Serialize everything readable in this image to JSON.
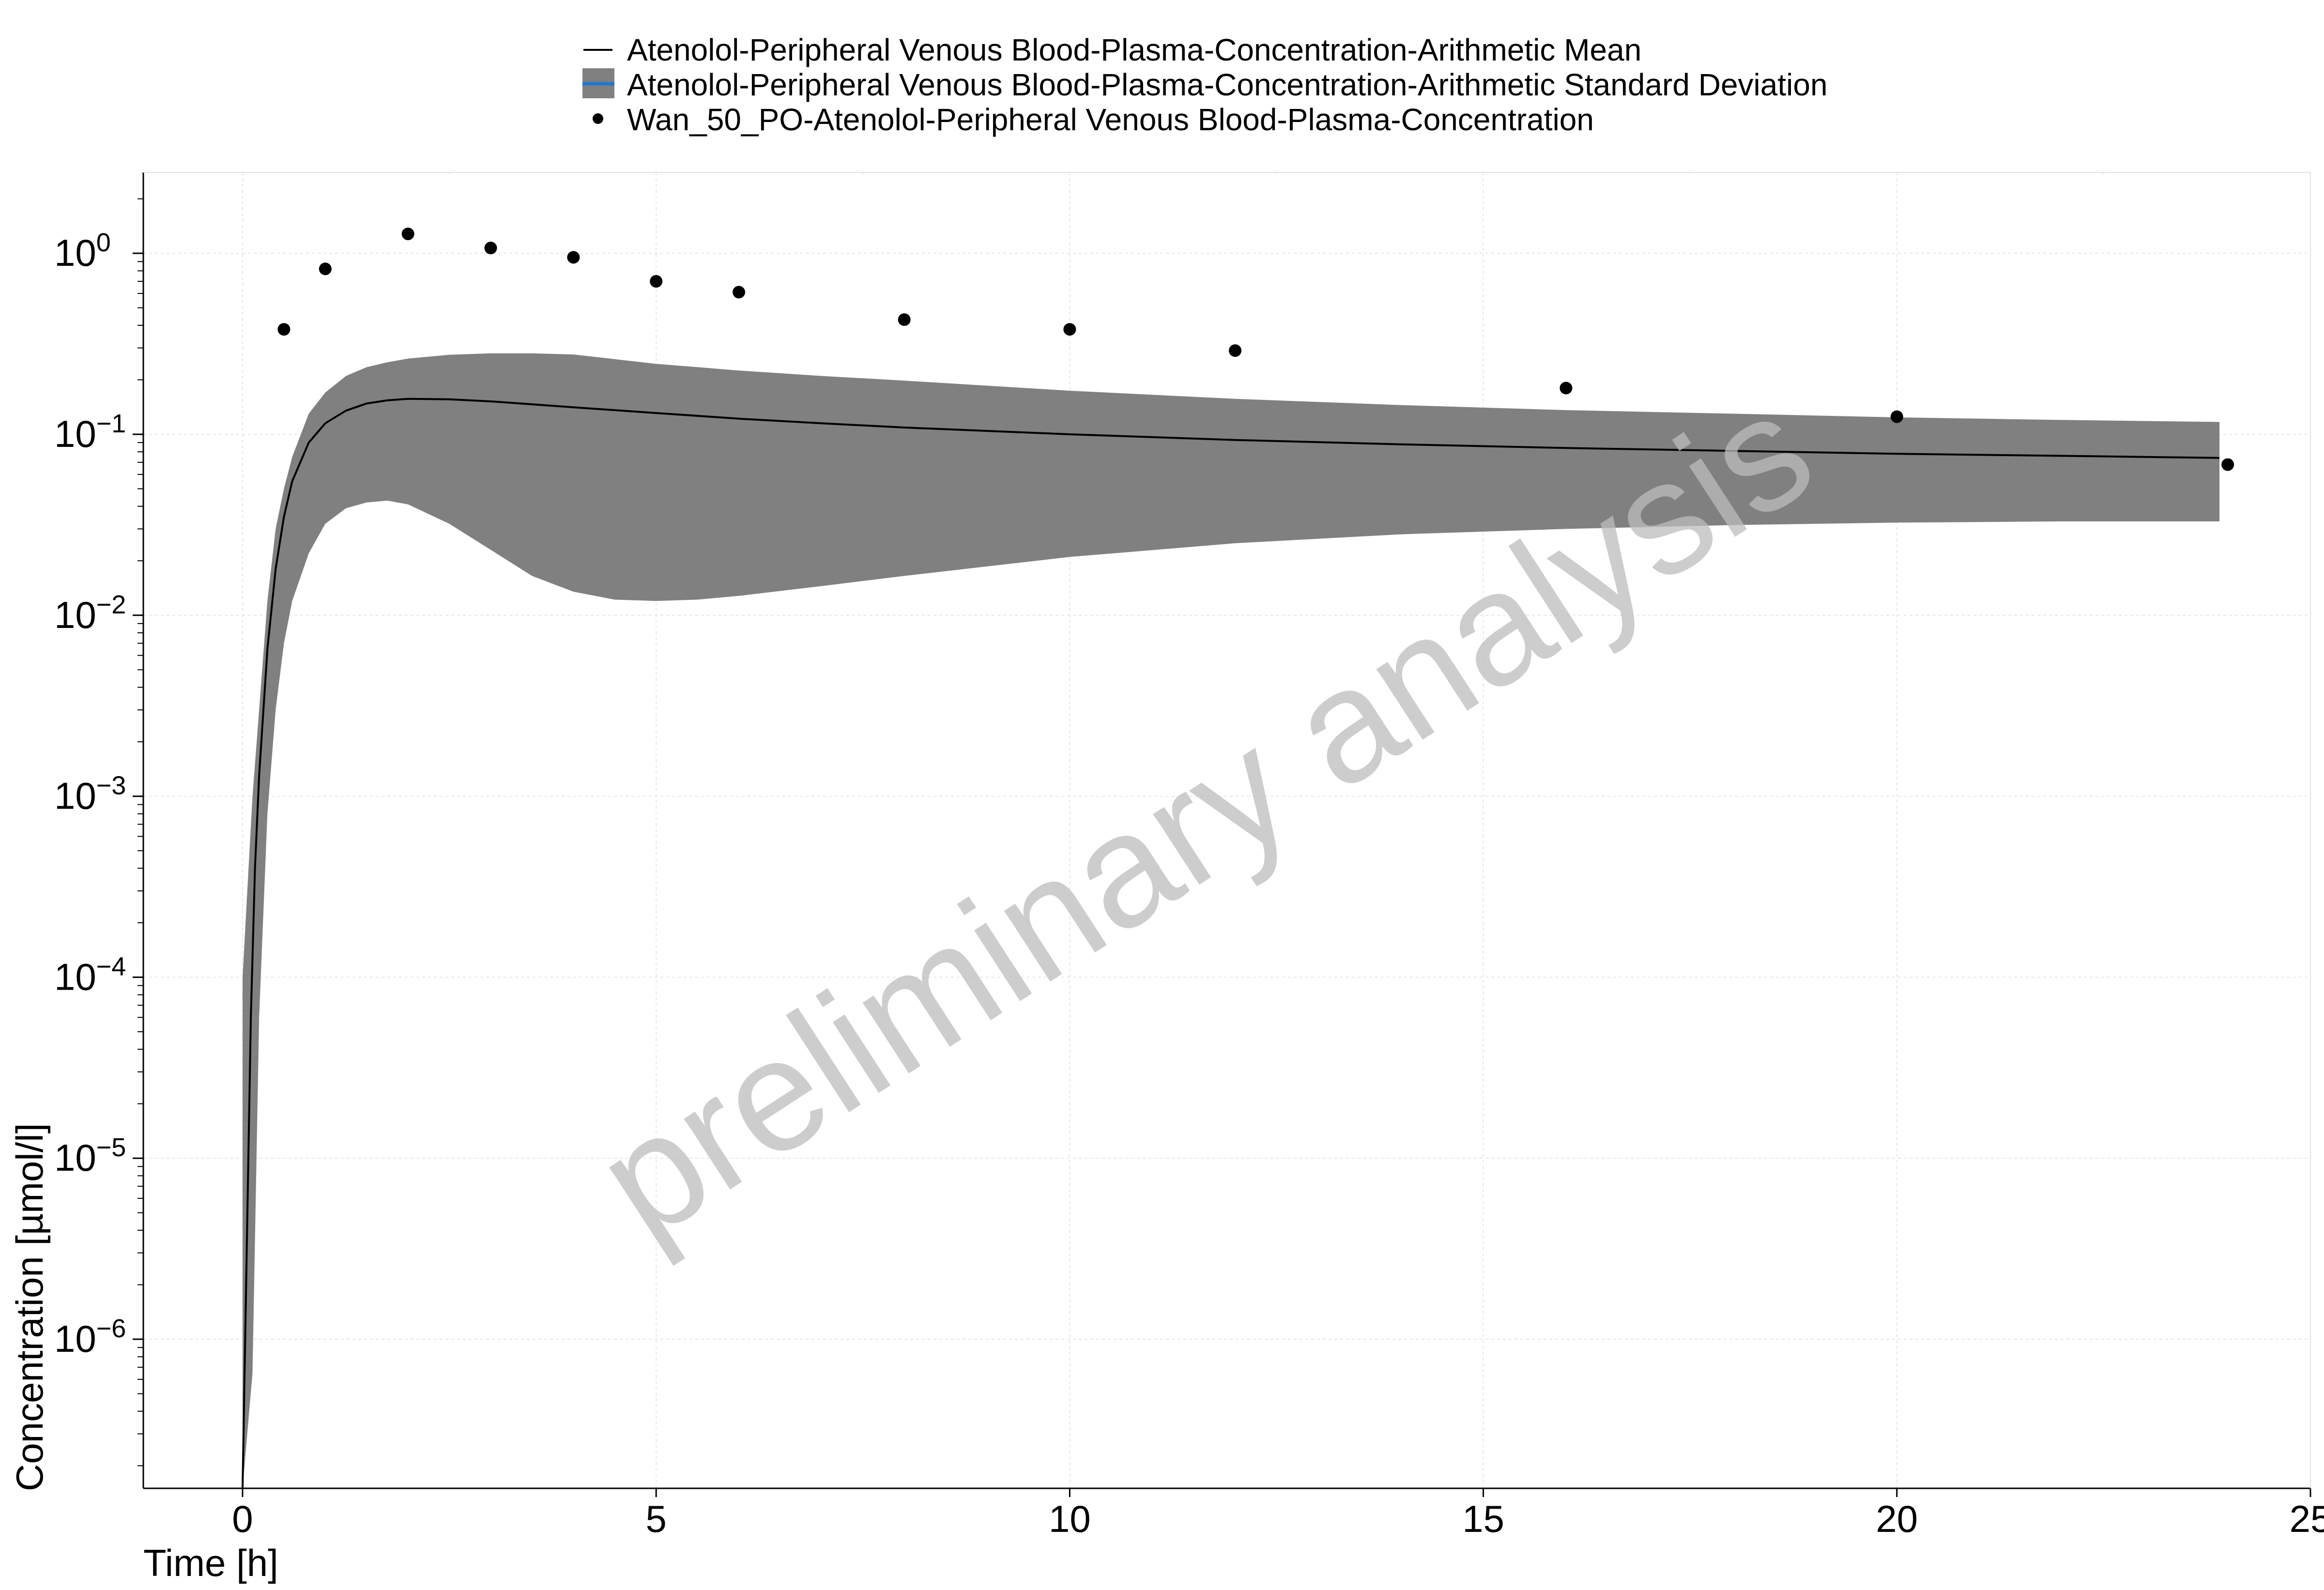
{
  "chart_data": {
    "type": "line",
    "xlabel": "Time [h]",
    "ylabel": "Concentration [µmol/l]",
    "xlim": [
      -1.2,
      25
    ],
    "ylim": [
      1.5e-07,
      2.8
    ],
    "yscale": "log",
    "grid": true,
    "legend_position": "top-center",
    "watermark": "preliminary analysis",
    "x_ticks": [
      {
        "value": 0,
        "label": "0"
      },
      {
        "value": 5,
        "label": "5"
      },
      {
        "value": 10,
        "label": "10"
      },
      {
        "value": 15,
        "label": "15"
      },
      {
        "value": 20,
        "label": "20"
      },
      {
        "value": 25,
        "label": "25"
      }
    ],
    "y_ticks": [
      {
        "value": 1e-06,
        "base": "10",
        "exp": "−6"
      },
      {
        "value": 1e-05,
        "base": "10",
        "exp": "−5"
      },
      {
        "value": 0.0001,
        "base": "10",
        "exp": "−4"
      },
      {
        "value": 0.001,
        "base": "10",
        "exp": "−3"
      },
      {
        "value": 0.01,
        "base": "10",
        "exp": "−2"
      },
      {
        "value": 0.1,
        "base": "10",
        "exp": "−1"
      },
      {
        "value": 1,
        "base": "10",
        "exp": "0"
      }
    ],
    "legend": [
      {
        "label": "Atenolol-Peripheral Venous Blood-Plasma-Concentration-Arithmetic Mean",
        "marker": "line"
      },
      {
        "label": "Atenolol-Peripheral Venous Blood-Plasma-Concentration-Arithmetic Standard Deviation",
        "marker": "band"
      },
      {
        "label": "Wan_50_PO-Atenolol-Peripheral Venous Blood-Plasma-Concentration",
        "marker": "point"
      }
    ],
    "series": [
      {
        "name": "Atenolol-Peripheral Venous Blood-Plasma-Concentration-Arithmetic Mean",
        "kind": "line",
        "color": "#000000",
        "x": [
          0,
          0.05,
          0.1,
          0.15,
          0.2,
          0.3,
          0.4,
          0.5,
          0.6,
          0.8,
          1.0,
          1.25,
          1.5,
          1.75,
          2.0,
          2.5,
          3,
          4,
          5,
          6,
          7,
          8,
          10,
          12,
          14,
          16,
          18,
          20,
          22,
          23.9
        ],
        "y": [
          1.5e-07,
          3e-06,
          6e-05,
          0.0004,
          0.0013,
          0.0065,
          0.018,
          0.035,
          0.055,
          0.09,
          0.115,
          0.135,
          0.148,
          0.154,
          0.157,
          0.156,
          0.152,
          0.141,
          0.131,
          0.122,
          0.115,
          0.109,
          0.1,
          0.093,
          0.088,
          0.084,
          0.081,
          0.078,
          0.076,
          0.074
        ]
      },
      {
        "name": "Atenolol-Peripheral Venous Blood-Plasma-Concentration-Arithmetic Standard Deviation",
        "kind": "band",
        "color": "#808080",
        "x": [
          0.0,
          0.12,
          0.2,
          0.3,
          0.4,
          0.5,
          0.6,
          0.8,
          1.0,
          1.25,
          1.5,
          1.75,
          2.0,
          2.5,
          3,
          3.5,
          4,
          4.5,
          5,
          5.5,
          6,
          7,
          8,
          10,
          12,
          14,
          16,
          18,
          20,
          22,
          23.9
        ],
        "lower": [
          1.5e-07,
          6.5e-07,
          6e-05,
          0.0008,
          0.003,
          0.007,
          0.012,
          0.022,
          0.032,
          0.039,
          0.042,
          0.043,
          0.041,
          0.032,
          0.023,
          0.0165,
          0.0135,
          0.0122,
          0.012,
          0.0122,
          0.0128,
          0.0145,
          0.0165,
          0.021,
          0.025,
          0.028,
          0.03,
          0.0315,
          0.0325,
          0.033,
          0.033
        ],
        "upper": [
          0.0001,
          0.001,
          0.003,
          0.012,
          0.03,
          0.05,
          0.075,
          0.13,
          0.17,
          0.21,
          0.235,
          0.25,
          0.262,
          0.275,
          0.28,
          0.28,
          0.276,
          0.26,
          0.245,
          0.235,
          0.225,
          0.21,
          0.198,
          0.174,
          0.157,
          0.145,
          0.136,
          0.13,
          0.124,
          0.12,
          0.117
        ]
      },
      {
        "name": "Wan_50_PO-Atenolol-Peripheral Venous Blood-Plasma-Concentration",
        "kind": "scatter",
        "color": "#000000",
        "x": [
          0.5,
          1.0,
          2.0,
          3.0,
          4.0,
          5.0,
          6.0,
          8.0,
          10.0,
          12.0,
          16.0,
          20.0,
          24.0
        ],
        "y": [
          0.38,
          0.82,
          1.28,
          1.07,
          0.95,
          0.7,
          0.61,
          0.43,
          0.38,
          0.29,
          0.18,
          0.125,
          0.068
        ]
      }
    ]
  }
}
